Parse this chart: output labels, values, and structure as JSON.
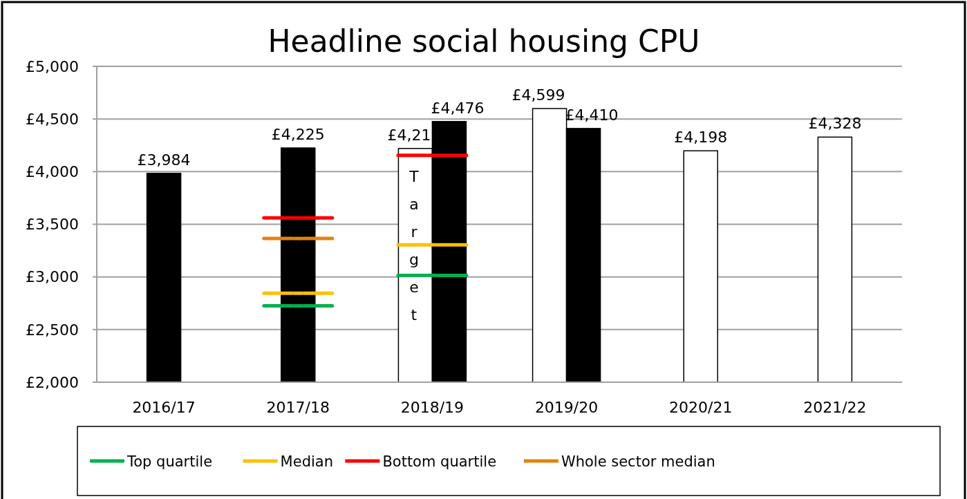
{
  "chart_data": {
    "type": "bar",
    "title": "Headline social housing CPU",
    "categories": [
      "2016/17",
      "2017/18",
      "2018/19",
      "2019/20",
      "2020/21",
      "2021/22"
    ],
    "ylim": [
      2000,
      5000
    ],
    "yticks": [
      {
        "value": 2000,
        "label": "£2,000"
      },
      {
        "value": 2500,
        "label": "£2,500"
      },
      {
        "value": 3000,
        "label": "£3,000"
      },
      {
        "value": 3500,
        "label": "£3,500"
      },
      {
        "value": 4000,
        "label": "£4,000"
      },
      {
        "value": 4500,
        "label": "£4,500"
      },
      {
        "value": 5000,
        "label": "£5,000"
      }
    ],
    "grid": "y",
    "legend": "bottom",
    "annotations": [
      {
        "text": "£4,21",
        "x": "2018/19",
        "y": 4220
      }
    ],
    "series": [
      {
        "name": "Target",
        "color": "#ffffff",
        "values": [
          null,
          null,
          4220,
          4599,
          4198,
          4328
        ],
        "value_labels": [
          null,
          null,
          null,
          "£4,599",
          "£4,198",
          "£4,328"
        ]
      },
      {
        "color": "#000000",
        "values": [
          3984,
          4225,
          4476,
          4410,
          null,
          null
        ],
        "value_labels": [
          "£3,984",
          "£4,225",
          "£4,476",
          "£4,410",
          null,
          null
        ]
      },
      {
        "name": "Top quartile",
        "type": "scatter",
        "color": "#00b050",
        "values": [
          null,
          2725,
          3015,
          null,
          null,
          null
        ]
      },
      {
        "name": "Median",
        "type": "scatter",
        "color": "#ffc000",
        "values": [
          null,
          2845,
          3305,
          null,
          null,
          null
        ]
      },
      {
        "name": "Bottom quartile",
        "type": "scatter",
        "color": "#ff0000",
        "values": [
          null,
          3560,
          4155,
          null,
          null,
          null
        ]
      },
      {
        "name": "Whole sector median",
        "type": "scatter",
        "color": "#e3820e",
        "values": [
          null,
          3365,
          null,
          null,
          null,
          null
        ]
      }
    ]
  }
}
